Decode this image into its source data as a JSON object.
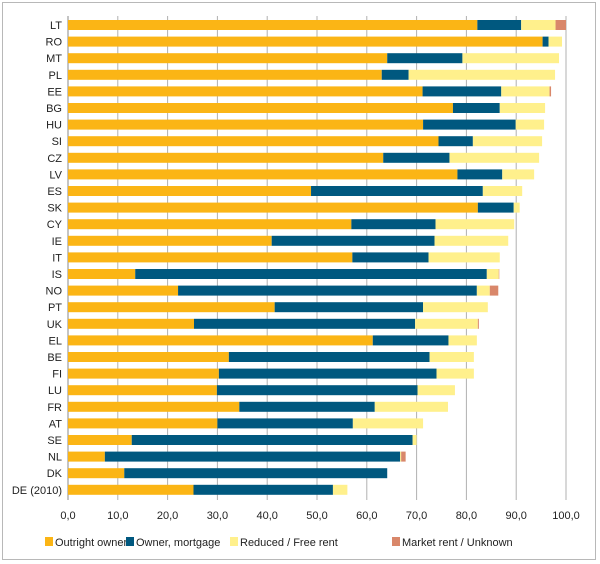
{
  "chart_data": {
    "type": "bar",
    "orientation": "horizontal",
    "stacked": true,
    "title": "",
    "xlabel": "",
    "ylabel": "",
    "xlim": [
      0,
      100
    ],
    "xticks": [
      "0,0",
      "10,0",
      "20,0",
      "30,0",
      "40,0",
      "50,0",
      "60,0",
      "70,0",
      "80,0",
      "90,0",
      "100,0"
    ],
    "grid": true,
    "legend_position": "bottom",
    "categories": [
      "LT",
      "RO",
      "MT",
      "PL",
      "EE",
      "BG",
      "HU",
      "SI",
      "CZ",
      "LV",
      "ES",
      "SK",
      "CY",
      "IE",
      "IT",
      "IS",
      "NO",
      "PT",
      "UK",
      "EL",
      "BE",
      "FI",
      "LU",
      "FR",
      "AT",
      "SE",
      "NL",
      "DK",
      "DE (2010)"
    ],
    "series": [
      {
        "name": "Outright owner",
        "color": "#FBB515",
        "values": [
          82.2,
          95.3,
          64.1,
          63.0,
          71.2,
          77.3,
          71.3,
          74.4,
          63.3,
          78.2,
          48.8,
          82.3,
          56.9,
          40.9,
          57.1,
          13.5,
          22.1,
          41.5,
          25.3,
          61.2,
          32.3,
          30.3,
          29.9,
          34.4,
          30.0,
          12.8,
          7.4,
          11.3,
          25.2
        ]
      },
      {
        "name": "Owner, mortgage",
        "color": "#00587F",
        "values": [
          8.8,
          1.2,
          15.1,
          5.4,
          15.8,
          9.4,
          18.6,
          6.9,
          13.3,
          9.0,
          34.5,
          7.2,
          16.9,
          32.7,
          15.3,
          70.6,
          60.0,
          29.8,
          44.4,
          15.2,
          40.3,
          43.7,
          40.3,
          27.2,
          27.2,
          56.4,
          59.3,
          52.8,
          28.0
        ]
      },
      {
        "name": "Reduced / Free  rent",
        "color": "#FFF08C",
        "values": [
          6.9,
          2.7,
          19.4,
          29.4,
          9.7,
          9.1,
          5.7,
          13.9,
          18.0,
          6.4,
          7.9,
          1.2,
          15.8,
          14.8,
          14.3,
          2.4,
          2.6,
          13.0,
          12.6,
          5.7,
          8.9,
          7.5,
          7.5,
          14.7,
          14.1,
          0.8,
          0.2,
          0.0,
          2.9
        ]
      },
      {
        "name": "Market rent  / Unknown",
        "color": "#D9876A",
        "values": [
          2.1,
          0.0,
          0.0,
          0.0,
          0.3,
          0.0,
          0.0,
          0.0,
          0.0,
          0.0,
          0.0,
          0.0,
          0.0,
          0.0,
          0.0,
          0.1,
          1.7,
          0.0,
          0.2,
          0.0,
          0.0,
          0.0,
          0.0,
          0.0,
          0.0,
          0.0,
          0.9,
          0.0,
          0.0
        ]
      }
    ]
  }
}
